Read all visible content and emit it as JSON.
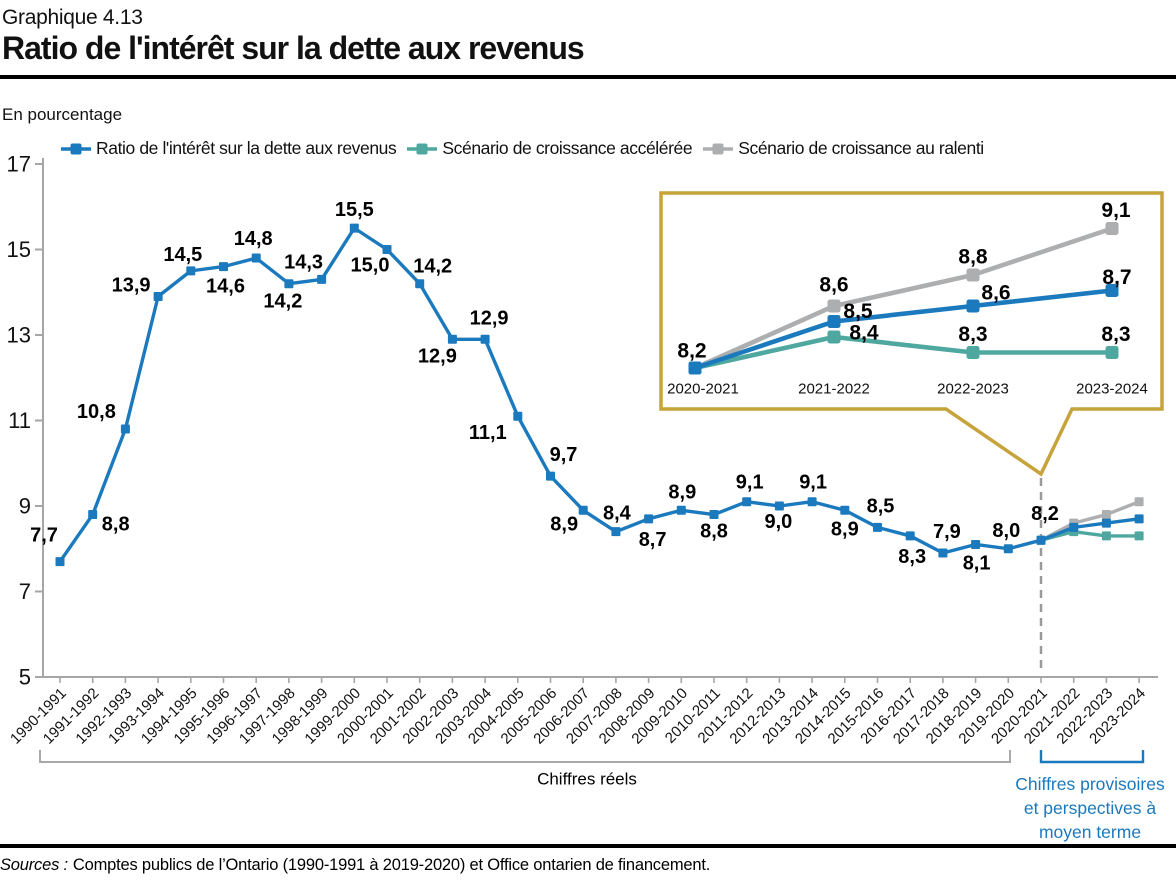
{
  "header": {
    "kicker": "Graphique 4.13",
    "title": "Ratio de l'intérêt sur la dette aux revenus",
    "unit_label": "En pourcentage"
  },
  "legend": {
    "items": [
      {
        "label": "Ratio de l'intérêt sur la dette aux revenus",
        "color": "#1B79BD"
      },
      {
        "label": "Scénario de croissance accélérée",
        "color": "#4FA8A0"
      },
      {
        "label": "Scénario de croissance au ralenti",
        "color": "#ACAEB0"
      }
    ]
  },
  "chart_data": [
    {
      "name": "main",
      "type": "line",
      "title": "Ratio de l'intérêt sur la dette aux revenus",
      "ylabel": "En pourcentage",
      "ylim": [
        5,
        17
      ],
      "yticks": [
        5,
        7,
        9,
        11,
        13,
        15,
        17
      ],
      "grid": false,
      "legend_position": "top",
      "marker": "square",
      "decimal_separator": ",",
      "categories": [
        "1990-1991",
        "1991-1992",
        "1992-1993",
        "1993-1994",
        "1994-1995",
        "1995-1996",
        "1996-1997",
        "1997-1998",
        "1998-1999",
        "1999-2000",
        "2000-2001",
        "2001-2002",
        "2002-2003",
        "2003-2004",
        "2004-2005",
        "2005-2006",
        "2006-2007",
        "2007-2008",
        "2008-2009",
        "2009-2010",
        "2010-2011",
        "2011-2012",
        "2012-2013",
        "2013-2014",
        "2014-2015",
        "2015-2016",
        "2016-2017",
        "2017-2018",
        "2018-2019",
        "2019-2020",
        "2020-2021",
        "2021-2022",
        "2022-2023",
        "2023-2024"
      ],
      "series": [
        {
          "name": "Ratio de l'intérêt sur la dette aux revenus",
          "color": "#1B79BD",
          "start_index": 0,
          "values": [
            7.7,
            8.8,
            10.8,
            13.9,
            14.5,
            14.6,
            14.8,
            14.2,
            14.3,
            15.5,
            15.0,
            14.2,
            12.9,
            12.9,
            11.1,
            9.7,
            8.9,
            8.4,
            8.7,
            8.9,
            8.8,
            9.1,
            9.0,
            9.1,
            8.9,
            8.5,
            8.3,
            7.9,
            8.1,
            8.0,
            8.2,
            8.5,
            8.6,
            8.7
          ],
          "labeled_through_index": 30
        },
        {
          "name": "Scénario de croissance accélérée",
          "color": "#4FA8A0",
          "start_index": 30,
          "values": [
            8.2,
            8.4,
            8.3,
            8.3
          ],
          "labeled_through_index": -1
        },
        {
          "name": "Scénario de croissance au ralenti",
          "color": "#ACAEB0",
          "start_index": 30,
          "values": [
            8.2,
            8.6,
            8.8,
            9.1
          ],
          "labeled_through_index": -1
        }
      ],
      "divider_at_category": "2020-2021"
    },
    {
      "name": "inset",
      "type": "line",
      "ylim": [
        8.0,
        9.35
      ],
      "grid": false,
      "marker": "square",
      "decimal_separator": ",",
      "border_color": "#C7A33C",
      "categories": [
        "2020-2021",
        "2021-2022",
        "2022-2023",
        "2023-2024"
      ],
      "series": [
        {
          "name": "Ratio de l'intérêt sur la dette aux revenus",
          "color": "#1B79BD",
          "values": [
            8.2,
            8.5,
            8.6,
            8.7
          ]
        },
        {
          "name": "Scénario de croissance accélérée",
          "color": "#4FA8A0",
          "values": [
            8.2,
            8.4,
            8.3,
            8.3
          ]
        },
        {
          "name": "Scénario de croissance au ralenti",
          "color": "#ACAEB0",
          "values": [
            8.2,
            8.6,
            8.8,
            9.1
          ]
        }
      ]
    }
  ],
  "annotations": {
    "real_bracket_label": "Chiffres réels",
    "projection_bracket_lines": [
      "Chiffres provisoires",
      "et perspectives à",
      "moyen terme"
    ],
    "projection_color": "#1B79BD"
  },
  "footer": {
    "sources_prefix": "Sources :",
    "sources_text": "Comptes publics de l’Ontario (1990-1991 à 2019-2020) et Office ontarien de financement."
  }
}
